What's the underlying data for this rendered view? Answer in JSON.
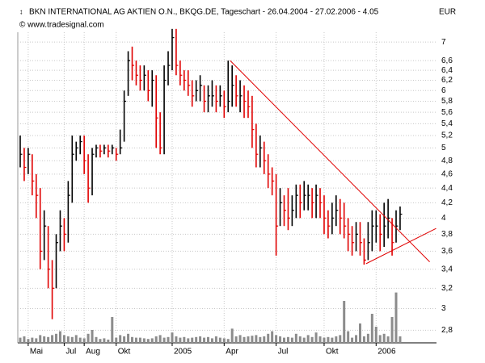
{
  "chart_data": {
    "type": "ohlc",
    "title": "BKN INTERNATIONAL AG AKTIEN O.N., BKQG.DE, Tageschart - 26.04.2004 - 27.02.2006 - 4.05",
    "subtitle": "© www.tradesignal.com",
    "y_label": "EUR",
    "log_scale": true,
    "grid": true,
    "up_color": "#000000",
    "down_color": "#e00000",
    "volume_color": "#8c8c8c",
    "trendline_color": "#e00000",
    "categories": [
      null,
      null,
      "Mai",
      null,
      null,
      null,
      null,
      null,
      null,
      null,
      null,
      "Jul",
      null,
      null,
      null,
      null,
      "Aug",
      null,
      null,
      null,
      null,
      null,
      null,
      null,
      "Okt",
      null,
      null,
      null,
      null,
      null,
      null,
      null,
      null,
      null,
      null,
      null,
      null,
      null,
      "2005",
      null,
      null,
      null,
      null,
      null,
      null,
      null,
      null,
      null,
      null,
      null,
      null,
      "Apr",
      null,
      null,
      null,
      null,
      null,
      null,
      null,
      null,
      null,
      null,
      null,
      null,
      "Jul",
      null,
      null,
      null,
      null,
      null,
      null,
      null,
      null,
      null,
      null,
      null,
      "Okt",
      null,
      null,
      null,
      null,
      null,
      null,
      null,
      null,
      null,
      null,
      null,
      null,
      "2006",
      null,
      null,
      null,
      null,
      null,
      null
    ],
    "high": [
      5.2,
      5.0,
      5.0,
      4.9,
      4.6,
      4.4,
      4.1,
      3.9,
      3.5,
      3.8,
      4.1,
      4.0,
      4.5,
      5.2,
      5.1,
      5.2,
      5.2,
      4.9,
      5.0,
      5.05,
      5.05,
      5.05,
      5.05,
      5.05,
      5.0,
      5.3,
      6.0,
      6.8,
      6.9,
      6.6,
      6.5,
      6.5,
      6.4,
      6.4,
      6.3,
      5.6,
      6.5,
      6.8,
      7.3,
      7.3,
      6.6,
      6.4,
      6.4,
      6.2,
      6.2,
      6.3,
      6.1,
      6.1,
      6.2,
      6.1,
      6.1,
      6.0,
      6.6,
      6.5,
      6.3,
      6.2,
      6.1,
      6.0,
      5.9,
      5.4,
      5.2,
      5.1,
      4.9,
      4.7,
      4.6,
      4.4,
      4.3,
      4.4,
      4.3,
      4.45,
      4.45,
      4.5,
      4.45,
      4.4,
      4.45,
      4.4,
      4.3,
      4.1,
      4.2,
      4.3,
      4.25,
      4.2,
      4.0,
      3.9,
      3.95,
      3.95,
      3.75,
      3.95,
      4.1,
      4.1,
      4.05,
      4.2,
      4.25,
      4.0,
      4.1,
      4.15
    ],
    "low": [
      4.7,
      4.5,
      4.6,
      4.3,
      4.0,
      3.4,
      3.5,
      3.2,
      2.9,
      3.2,
      3.6,
      3.6,
      3.7,
      4.2,
      4.8,
      4.9,
      4.6,
      4.2,
      4.3,
      4.85,
      4.85,
      4.9,
      4.85,
      4.9,
      4.8,
      4.9,
      5.1,
      5.9,
      6.2,
      6.1,
      6.0,
      6.0,
      5.8,
      5.7,
      5.0,
      4.9,
      4.9,
      6.1,
      6.4,
      6.3,
      6.1,
      6.0,
      5.9,
      5.7,
      5.8,
      5.8,
      5.6,
      5.6,
      5.7,
      5.6,
      5.7,
      5.5,
      5.6,
      5.7,
      5.7,
      5.6,
      5.5,
      5.5,
      5.0,
      4.7,
      4.7,
      4.6,
      4.4,
      4.3,
      3.55,
      3.9,
      3.9,
      3.85,
      3.9,
      4.0,
      4.0,
      4.1,
      4.1,
      4.0,
      4.0,
      4.0,
      3.8,
      3.75,
      3.8,
      3.9,
      3.8,
      3.75,
      3.6,
      3.55,
      3.6,
      3.55,
      3.45,
      3.5,
      3.6,
      3.7,
      3.6,
      3.65,
      3.75,
      3.55,
      3.7,
      3.85
    ],
    "close": [
      4.9,
      4.7,
      4.9,
      4.5,
      4.3,
      3.6,
      3.9,
      3.4,
      3.2,
      3.7,
      3.9,
      3.8,
      4.3,
      4.9,
      5.0,
      5.1,
      4.8,
      4.4,
      4.9,
      5.0,
      4.95,
      5.0,
      4.95,
      5.0,
      4.9,
      5.0,
      5.8,
      6.6,
      6.5,
      6.3,
      6.2,
      6.3,
      6.0,
      6.2,
      5.5,
      5.0,
      6.2,
      6.5,
      7.1,
      6.5,
      6.3,
      6.2,
      6.1,
      5.9,
      6.0,
      6.1,
      5.8,
      5.9,
      5.9,
      5.8,
      5.9,
      5.7,
      5.8,
      6.1,
      5.9,
      5.9,
      5.8,
      5.7,
      5.3,
      4.9,
      5.0,
      4.8,
      4.6,
      4.5,
      3.9,
      4.2,
      4.1,
      4.0,
      4.1,
      4.3,
      4.2,
      4.3,
      4.3,
      4.2,
      4.3,
      4.2,
      4.0,
      3.9,
      4.0,
      4.1,
      4.0,
      3.9,
      3.8,
      3.7,
      3.8,
      3.7,
      3.5,
      3.7,
      3.9,
      3.9,
      3.8,
      3.9,
      4.0,
      3.7,
      3.9,
      4.05
    ],
    "volume": [
      8,
      10,
      6,
      8,
      7,
      12,
      10,
      9,
      12,
      14,
      18,
      12,
      10,
      9,
      12,
      8,
      7,
      14,
      20,
      9,
      6,
      7,
      5,
      40,
      8,
      12,
      10,
      14,
      9,
      8,
      8,
      7,
      6,
      7,
      10,
      12,
      8,
      9,
      16,
      10,
      8,
      9,
      7,
      8,
      9,
      10,
      8,
      9,
      7,
      10,
      8,
      7,
      6,
      22,
      10,
      12,
      9,
      10,
      11,
      12,
      9,
      10,
      14,
      18,
      12,
      10,
      8,
      9,
      8,
      14,
      10,
      8,
      12,
      9,
      16,
      10,
      8,
      9,
      8,
      10,
      12,
      65,
      18,
      8,
      12,
      30,
      10,
      14,
      45,
      25,
      12,
      14,
      10,
      40,
      78,
      10
    ],
    "vlim": [
      0,
      100
    ],
    "ylim": [
      2.69,
      7.8
    ],
    "yticks": [
      {
        "value": 2.8,
        "label": "2,8"
      },
      3,
      {
        "value": 3.2,
        "label": "3,2"
      },
      {
        "value": 3.4,
        "label": "3,4"
      },
      {
        "value": 3.6,
        "label": "3,6"
      },
      {
        "value": 3.8,
        "label": "3,8"
      },
      4,
      {
        "value": 4.2,
        "label": "4,2"
      },
      {
        "value": 4.4,
        "label": "4,4"
      },
      {
        "value": 4.6,
        "label": "4,6"
      },
      {
        "value": 4.8,
        "label": "4,8"
      },
      5,
      {
        "value": 5.2,
        "label": "5,2"
      },
      {
        "value": 5.4,
        "label": "5,4"
      },
      {
        "value": 5.6,
        "label": "5,6"
      },
      {
        "value": 5.8,
        "label": "5,8"
      },
      6,
      {
        "value": 6.2,
        "label": "6,2"
      },
      {
        "value": 6.4,
        "label": "6,4"
      },
      {
        "value": 6.6,
        "label": "6,6"
      },
      7
    ],
    "trendlines": [
      {
        "x": [
          52.5,
          102.4
        ],
        "y": [
          6.6,
          3.48
        ]
      },
      {
        "x": [
          86.5,
          104
        ],
        "y": [
          3.46,
          3.87
        ]
      }
    ]
  }
}
